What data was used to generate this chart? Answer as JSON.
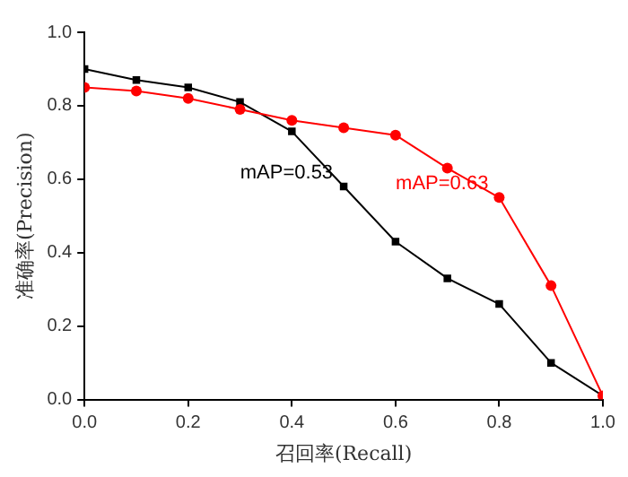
{
  "chart_data": {
    "type": "line",
    "xlabel": "召回率(Recall)",
    "ylabel": "准确率(Precision)",
    "x": [
      0,
      0.1,
      0.2,
      0.3,
      0.4,
      0.5,
      0.6,
      0.7,
      0.8,
      0.9,
      1.0
    ],
    "series": [
      {
        "color": "#000000",
        "marker": "square",
        "values": [
          0.9,
          0.87,
          0.85,
          0.81,
          0.73,
          0.58,
          0.43,
          0.33,
          0.26,
          0.1,
          0.01
        ]
      },
      {
        "color": "#ff0000",
        "marker": "circle",
        "values": [
          0.85,
          0.84,
          0.82,
          0.79,
          0.76,
          0.74,
          0.72,
          0.63,
          0.55,
          0.31,
          0.01
        ]
      }
    ],
    "annotations": [
      {
        "text": "mAP=0.53",
        "x": 0.5,
        "y": 0.58
      },
      {
        "text": "mAP=0.63",
        "x": 0.8,
        "y": 0.55
      }
    ],
    "xlim": [
      0,
      1
    ],
    "ylim": [
      0,
      1
    ],
    "xticks": [
      {
        "value": 0,
        "label": "0.0"
      },
      0.2,
      0.4,
      0.6,
      0.8,
      {
        "value": 1,
        "label": "1.0"
      }
    ],
    "yticks": [
      {
        "value": 0,
        "label": "0.0"
      },
      0.2,
      0.4,
      0.6,
      0.8,
      {
        "value": 1,
        "label": "1.0"
      }
    ],
    "grid": false,
    "legend": false,
    "line_style": "solid"
  }
}
